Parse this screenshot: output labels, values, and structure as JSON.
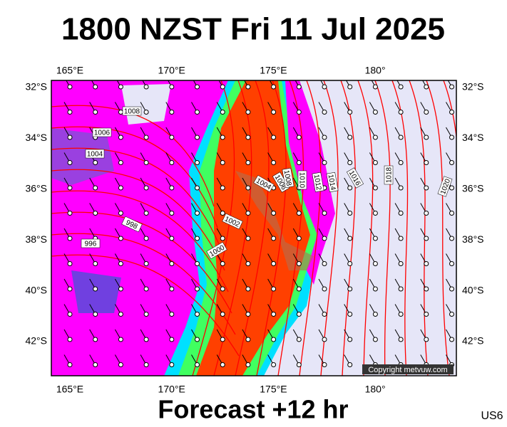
{
  "title": "1800 NZST Fri 11 Jul 2025",
  "longitudes": [
    "165°E",
    "170°E",
    "175°E",
    "180°"
  ],
  "latitudes": [
    "32°S",
    "34°S",
    "36°S",
    "38°S",
    "40°S",
    "42°S"
  ],
  "isobar_labels": [
    "1008",
    "1006",
    "1004",
    "998",
    "996",
    "1000",
    "1002",
    "1004",
    "1006",
    "1008",
    "1010",
    "1012",
    "1014",
    "1016",
    "1018",
    "1020"
  ],
  "copyright": "Copyright metvuw.com",
  "footer": "Forecast +12 hr",
  "code": "US6"
}
